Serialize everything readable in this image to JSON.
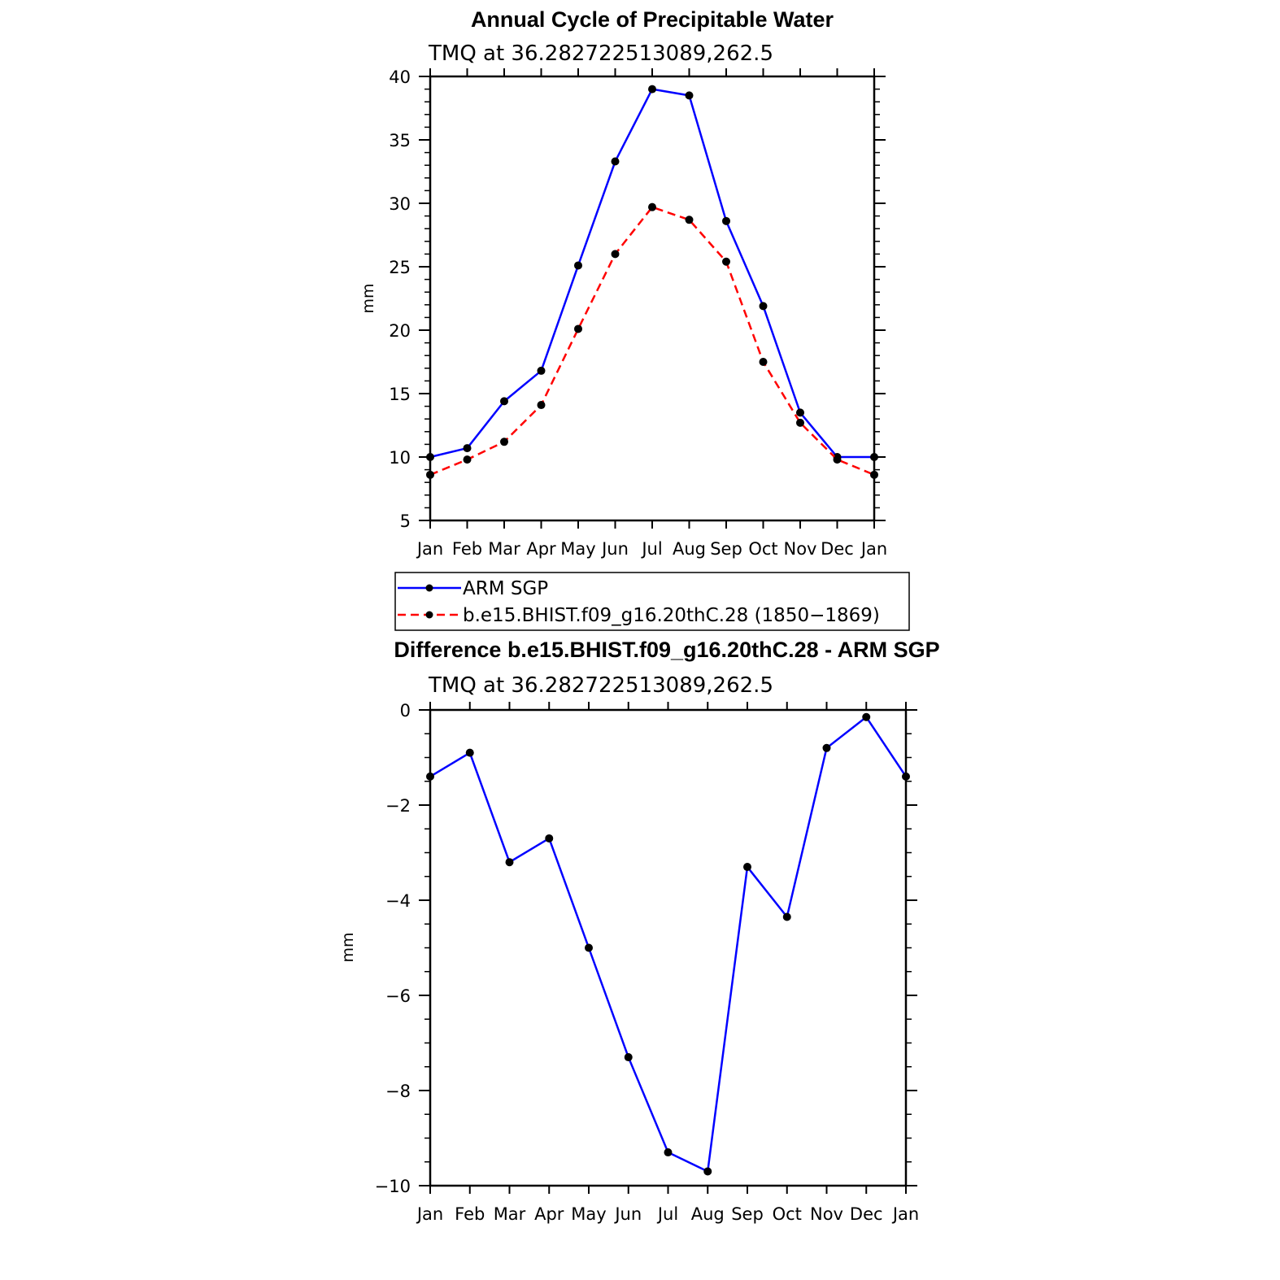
{
  "chart_data": [
    {
      "type": "line",
      "title": "Annual Cycle of Precipitable Water",
      "subtitle": "TMQ at 36.282722513089,262.5",
      "xlabel": "",
      "ylabel": "mm",
      "categories": [
        "Jan",
        "Feb",
        "Mar",
        "Apr",
        "May",
        "Jun",
        "Jul",
        "Aug",
        "Sep",
        "Oct",
        "Nov",
        "Dec",
        "Jan"
      ],
      "ylim": [
        5,
        40
      ],
      "yticks": [
        "5",
        "10",
        "15",
        "20",
        "25",
        "30",
        "35",
        "40"
      ],
      "series": [
        {
          "name": "ARM SGP",
          "color": "#0000ff",
          "dash": "solid",
          "values": [
            10.0,
            10.7,
            14.4,
            16.8,
            25.1,
            33.3,
            39.0,
            38.5,
            28.6,
            21.9,
            13.5,
            10.0,
            10.0
          ]
        },
        {
          "name": "b.e15.BHIST.f09_g16.20thC.28 (1850−1869)",
          "color": "#ff0000",
          "dash": "dashed",
          "values": [
            8.6,
            9.8,
            11.2,
            14.1,
            20.1,
            26.0,
            29.7,
            28.7,
            25.4,
            17.5,
            12.7,
            9.8,
            8.6
          ]
        }
      ],
      "legend": "below"
    },
    {
      "type": "line",
      "title": "Difference b.e15.BHIST.f09_g16.20thC.28 - ARM SGP",
      "subtitle": "TMQ at 36.282722513089,262.5",
      "xlabel": "",
      "ylabel": "mm",
      "categories": [
        "Jan",
        "Feb",
        "Mar",
        "Apr",
        "May",
        "Jun",
        "Jul",
        "Aug",
        "Sep",
        "Oct",
        "Nov",
        "Dec",
        "Jan"
      ],
      "ylim": [
        -10,
        0
      ],
      "yticks": [
        "−10",
        "−8",
        "−6",
        "−4",
        "−2",
        "0"
      ],
      "series": [
        {
          "name": "Difference",
          "color": "#0000ff",
          "dash": "solid",
          "values": [
            -1.4,
            -0.9,
            -3.2,
            -2.7,
            -5.0,
            -7.3,
            -9.3,
            -9.7,
            -3.3,
            -4.35,
            -0.8,
            -0.15,
            -1.4
          ]
        }
      ]
    }
  ]
}
